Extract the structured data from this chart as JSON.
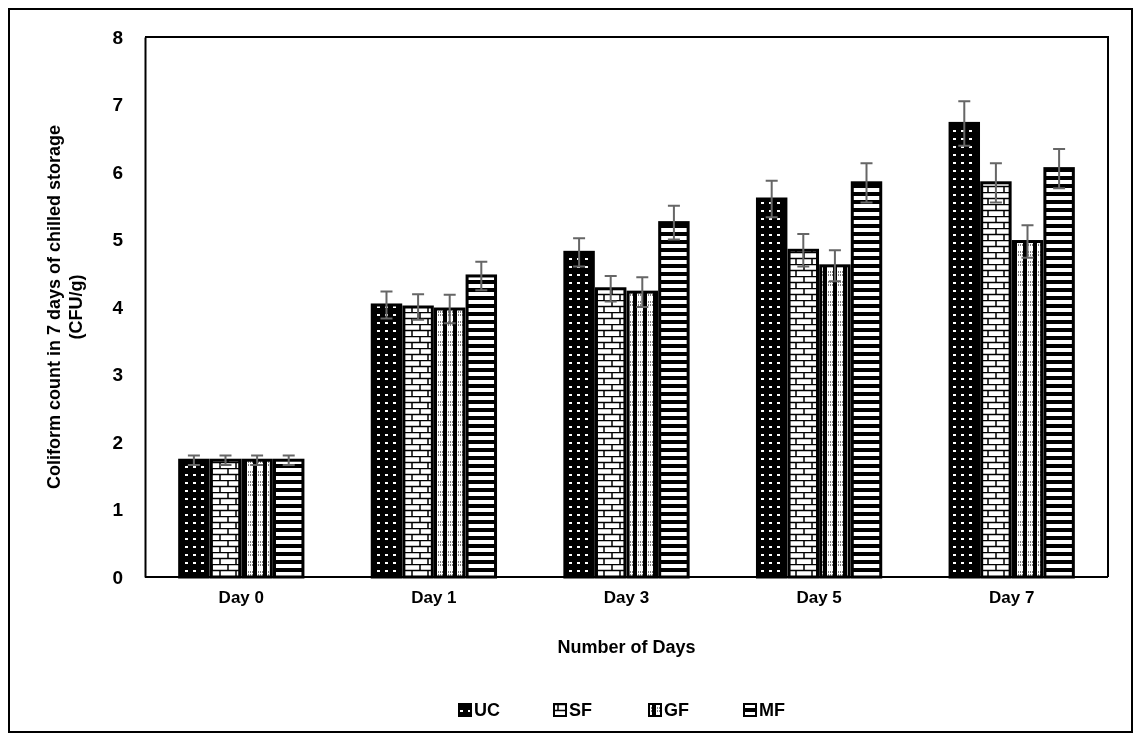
{
  "chart_data": {
    "type": "bar",
    "xlabel": "Number of Days",
    "ylabel": "Coliform count in 7 days  of chilled storage\n(CFU/g)",
    "categories": [
      "Day 0",
      "Day 1",
      "Day 3",
      "Day 5",
      "Day 7"
    ],
    "series": [
      {
        "name": "UC",
        "color": "#000000",
        "values": [
          1.73,
          4.03,
          4.81,
          5.6,
          6.72
        ],
        "errors": [
          0.07,
          0.2,
          0.21,
          0.27,
          0.33
        ]
      },
      {
        "name": "SF",
        "color": "#000000",
        "values": [
          1.73,
          4.0,
          4.27,
          4.84,
          5.84
        ],
        "errors": [
          0.07,
          0.19,
          0.19,
          0.24,
          0.29
        ]
      },
      {
        "name": "GF",
        "color": "#000000",
        "values": [
          1.73,
          3.97,
          4.22,
          4.61,
          4.97
        ],
        "errors": [
          0.07,
          0.21,
          0.22,
          0.23,
          0.24
        ]
      },
      {
        "name": "MF",
        "color": "#000000",
        "values": [
          1.73,
          4.46,
          5.25,
          5.84,
          6.05
        ],
        "errors": [
          0.07,
          0.21,
          0.25,
          0.29,
          0.29
        ]
      }
    ],
    "ylim": [
      0,
      8
    ],
    "yticks": [
      0,
      1,
      2,
      3,
      4,
      5,
      6,
      7,
      8
    ],
    "grid": false,
    "legend": "bottom"
  }
}
